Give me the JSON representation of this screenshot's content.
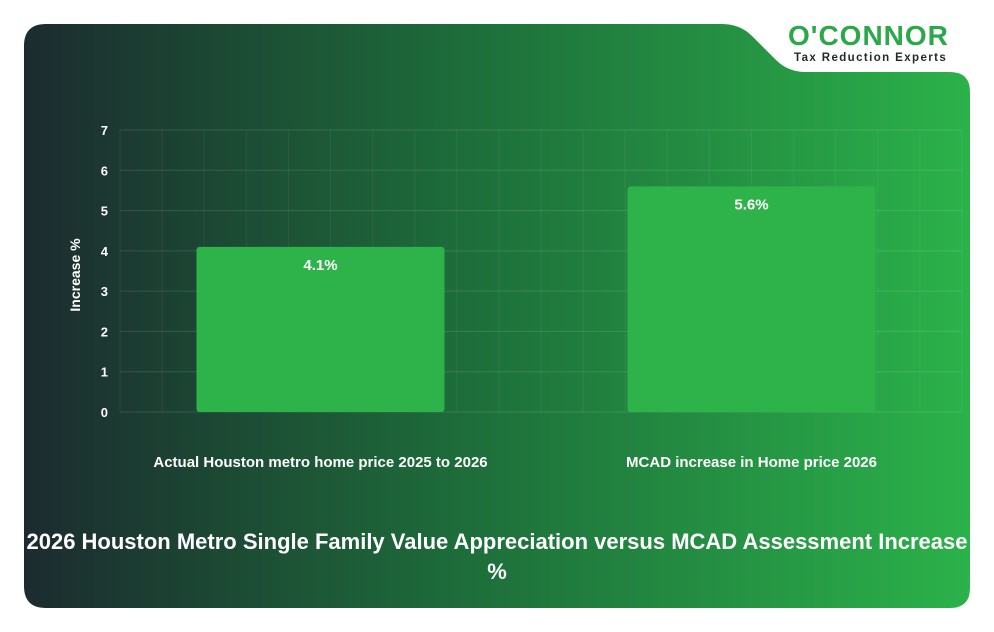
{
  "brand": {
    "name": "O'CONNOR",
    "tagline": "Tax Reduction Experts",
    "accent": "#2aa84a"
  },
  "chart_data": {
    "type": "bar",
    "title": "2026 Houston Metro Single Family Value Appreciation versus MCAD Assessment Increase %",
    "xlabel": "",
    "ylabel": "Increase %",
    "categories": [
      "Actual Houston metro home price 2025 to 2026",
      "MCAD increase in Home price 2026"
    ],
    "values": [
      4.1,
      5.6
    ],
    "data_labels": [
      "4.1%",
      "5.6%"
    ],
    "ylim": [
      0,
      7
    ],
    "yticks": [
      0,
      1,
      2,
      3,
      4,
      5,
      6,
      7
    ],
    "grid": true,
    "bar_color": "#2db34a",
    "background_gradient": [
      "#1c2b2f",
      "#2bb24a"
    ]
  }
}
